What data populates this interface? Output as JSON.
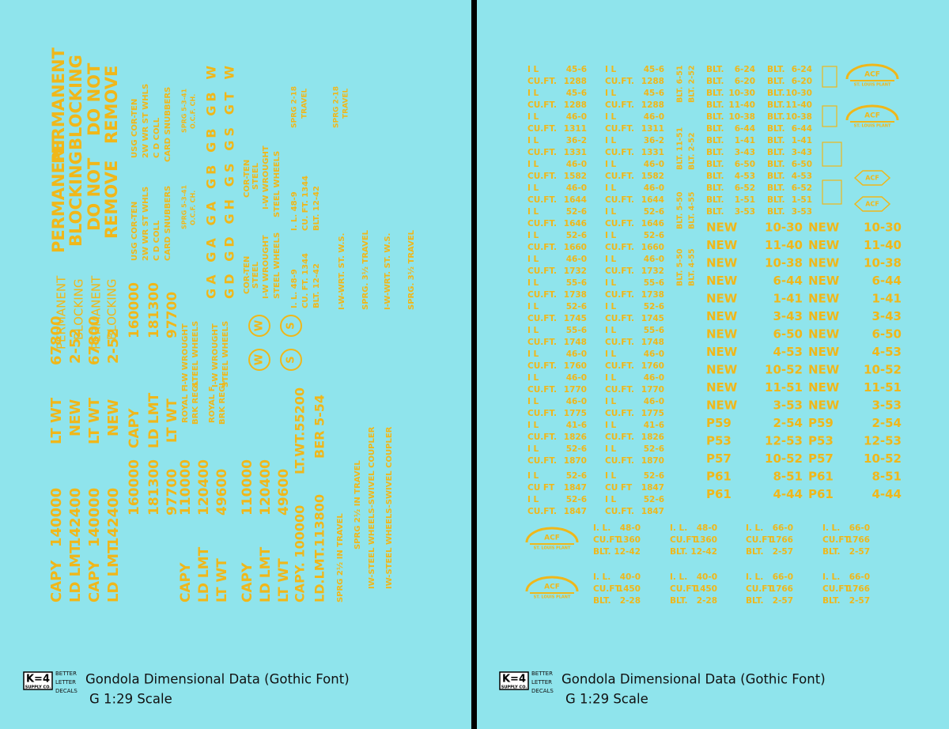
{
  "footer": {
    "logo": "K=4",
    "logo_sub": "SUPPLY CO.",
    "brand": [
      "BETTER",
      "LETTER",
      "DECALS"
    ],
    "title": "Gondola Dimensional Data (Gothic Font)",
    "scale": "G 1:29 Scale"
  },
  "left": {
    "items": [
      "CAPY",
      "140000",
      "LT WT",
      "67800",
      "LD LMT",
      "142400",
      "NEW",
      "2-52",
      "CAPY",
      "140000",
      "LT WT",
      "67800",
      "LD LMT",
      "142400",
      "NEW",
      "2-52",
      "PERMANENT",
      "BLOCKING",
      "DO NOT",
      "REMOVE",
      "PERMANENT",
      "BLOCKING",
      "DO NOT",
      "REMOVE",
      "PERMANENT",
      "BLOCKING",
      "PERMANENT",
      "BLOCKING",
      "160000",
      "CAPY",
      "181300",
      "LD LMT",
      "97700",
      "LT WT",
      "160000",
      "181300",
      "97700",
      "USG COR-TEN",
      "2W WR ST WHLS",
      "C D COLL",
      "CARD SNUBBERS",
      "USG COR-TEN",
      "2W WR ST WHLS",
      "C D COLL",
      "CARD SNUBBERS",
      "SPRG 5-3-41",
      "O.C.F. CH.",
      "SPRG 5-3-41",
      "O.C.F. CH.",
      "CAPY",
      "110000",
      "LD LMT",
      "120400",
      "LT WT",
      "49600",
      "ROYAL F",
      "BRK REGL.",
      "ROYAL F",
      "BRK REGL.",
      "I-W WROUGHT",
      "STEEL WHEELS",
      "I-W WROUGHT",
      "STEEL WHEELS",
      "GA GA GA GB GB GB W",
      "GD GD GH GS GS GT W",
      "CAPY",
      "110000",
      "LD LMT",
      "120400",
      "LT WT",
      "49600",
      "COR-TEN",
      "STEEL",
      "I-W WROUGHT",
      "STEEL WHEELS",
      "COR-TEN",
      "STEEL",
      "I-W WROUGHT",
      "STEEL WHEELS",
      "CAPY. 100000",
      "LT.WT.55200",
      "LD.LMT.113800",
      "BER 5-54",
      "I. L. 48-9",
      "CU. FT. 1344",
      "BLT. 12-42",
      "I. L. 48-9",
      "CU. FT. 1344",
      "BLT. 12-42",
      "SPRG 2½ IN TRAVEL",
      "SPRG 2½ IN TRAVEL",
      "IW-STEEL WHEELS-SWIVEL COUPLER",
      "IW-STEEL WHEELS-SWIVEL COUPLER",
      "I-W-WRT. ST. W.S.",
      "SPRG. 3½ TRAVEL",
      "I-W-WRT. ST. W.S.",
      "SPRG. 3½ TRAVEL",
      "SPRG 2-18",
      "TRAVEL",
      "SPRG 2-18",
      "TRAVEL"
    ],
    "circles": [
      "W",
      "W",
      "S",
      "S"
    ]
  },
  "right": {
    "ilc_rows": [
      [
        "I L",
        "45-6",
        "CU.FT.",
        "1288"
      ],
      [
        "I L",
        "45-6",
        "CU.FT.",
        "1288"
      ],
      [
        "I L",
        "46-0",
        "CU.FT.",
        "1311"
      ],
      [
        "I L",
        "36-2",
        "CU.FT.",
        "1331"
      ],
      [
        "I L",
        "46-0",
        "CU.FT.",
        "1582"
      ],
      [
        "I L",
        "46-0",
        "CU.FT.",
        "1644"
      ],
      [
        "I L",
        "52-6",
        "CU.FT.",
        "1646"
      ],
      [
        "I L",
        "52-6",
        "CU.FT.",
        "1660"
      ],
      [
        "I L",
        "46-0",
        "CU.FT.",
        "1732"
      ],
      [
        "I L",
        "55-6",
        "CU.FT.",
        "1738"
      ],
      [
        "I L",
        "52-6",
        "CU.FT.",
        "1745"
      ],
      [
        "I L",
        "55-6",
        "CU.FT.",
        "1748"
      ],
      [
        "I L",
        "46-0",
        "CU.FT.",
        "1760"
      ],
      [
        "I L",
        "46-0",
        "CU.FT.",
        "1770"
      ],
      [
        "I L",
        "46-0",
        "CU.FT.",
        "1775"
      ],
      [
        "I L",
        "41-6",
        "CU.FT.",
        "1826"
      ],
      [
        "I L",
        "52-6",
        "CU.FT.",
        "1870"
      ],
      [
        "I L",
        "52-6",
        "CU FT",
        "1847"
      ],
      [
        "I L",
        "52-6",
        "CU.FT.",
        "1847"
      ]
    ],
    "vertical_blt": [
      "BLT. 6-51",
      "BLT. 2-52",
      "BLT. 11-51",
      "BLT. 2-52",
      "BLT. 5-50",
      "BLT. 4-55",
      "BLT. 5-50",
      "BLT. 4-55"
    ],
    "blt_rows": [
      [
        "BLT.",
        "6-24"
      ],
      [
        "BLT.",
        "6-20"
      ],
      [
        "BLT.",
        "10-30"
      ],
      [
        "BLT.",
        "11-40"
      ],
      [
        "BLT.",
        "10-38"
      ],
      [
        "BLT.",
        "6-44"
      ],
      [
        "BLT.",
        "1-41"
      ],
      [
        "BLT.",
        "3-43"
      ],
      [
        "BLT.",
        "6-50"
      ],
      [
        "BLT.",
        "4-53"
      ],
      [
        "BLT.",
        "6-52"
      ],
      [
        "BLT.",
        "1-51"
      ],
      [
        "BLT.",
        "3-53"
      ]
    ],
    "new_rows": [
      [
        "NEW",
        "10-30"
      ],
      [
        "NEW",
        "11-40"
      ],
      [
        "NEW",
        "10-38"
      ],
      [
        "NEW",
        "6-44"
      ],
      [
        "NEW",
        "1-41"
      ],
      [
        "NEW",
        "3-43"
      ],
      [
        "NEW",
        "6-50"
      ],
      [
        "NEW",
        "4-53"
      ],
      [
        "NEW",
        "10-52"
      ],
      [
        "NEW",
        "11-51"
      ],
      [
        "NEW",
        "3-53"
      ],
      [
        "P59",
        "2-54"
      ],
      [
        "P53",
        "12-53"
      ],
      [
        "P57",
        "10-52"
      ],
      [
        "P61",
        "8-51"
      ],
      [
        "P61",
        "4-44"
      ]
    ],
    "spec_blocks": [
      [
        [
          [
            "I. L.",
            "48-0"
          ],
          [
            "CU.FT.",
            "1360"
          ],
          [
            "BLT.",
            "12-42"
          ]
        ],
        [
          [
            "I. L.",
            "48-0"
          ],
          [
            "CU.FT.",
            "1360"
          ],
          [
            "BLT.",
            "12-42"
          ]
        ],
        [
          [
            "I. L.",
            "66-0"
          ],
          [
            "CU.FT.",
            "1766"
          ],
          [
            "BLT.",
            "2-57"
          ]
        ],
        [
          [
            "I. L.",
            "66-0"
          ],
          [
            "CU.FT.",
            "1766"
          ],
          [
            "BLT.",
            "2-57"
          ]
        ]
      ],
      [
        [
          [
            "I. L.",
            "40-0"
          ],
          [
            "CU.FT.",
            "1450"
          ],
          [
            "BLT.",
            "2-28"
          ]
        ],
        [
          [
            "I. L.",
            "40-0"
          ],
          [
            "CU.FT.",
            "1450"
          ],
          [
            "BLT.",
            "2-28"
          ]
        ],
        [
          [
            "I. L.",
            "66-0"
          ],
          [
            "CU.FT.",
            "1766"
          ],
          [
            "BLT.",
            "2-57"
          ]
        ],
        [
          [
            "I. L.",
            "66-0"
          ],
          [
            "CU.FT.",
            "1766"
          ],
          [
            "BLT.",
            "2-57"
          ]
        ]
      ]
    ],
    "logo_text": "ACF",
    "logo_sub": "ST. LOUIS PLANT"
  }
}
